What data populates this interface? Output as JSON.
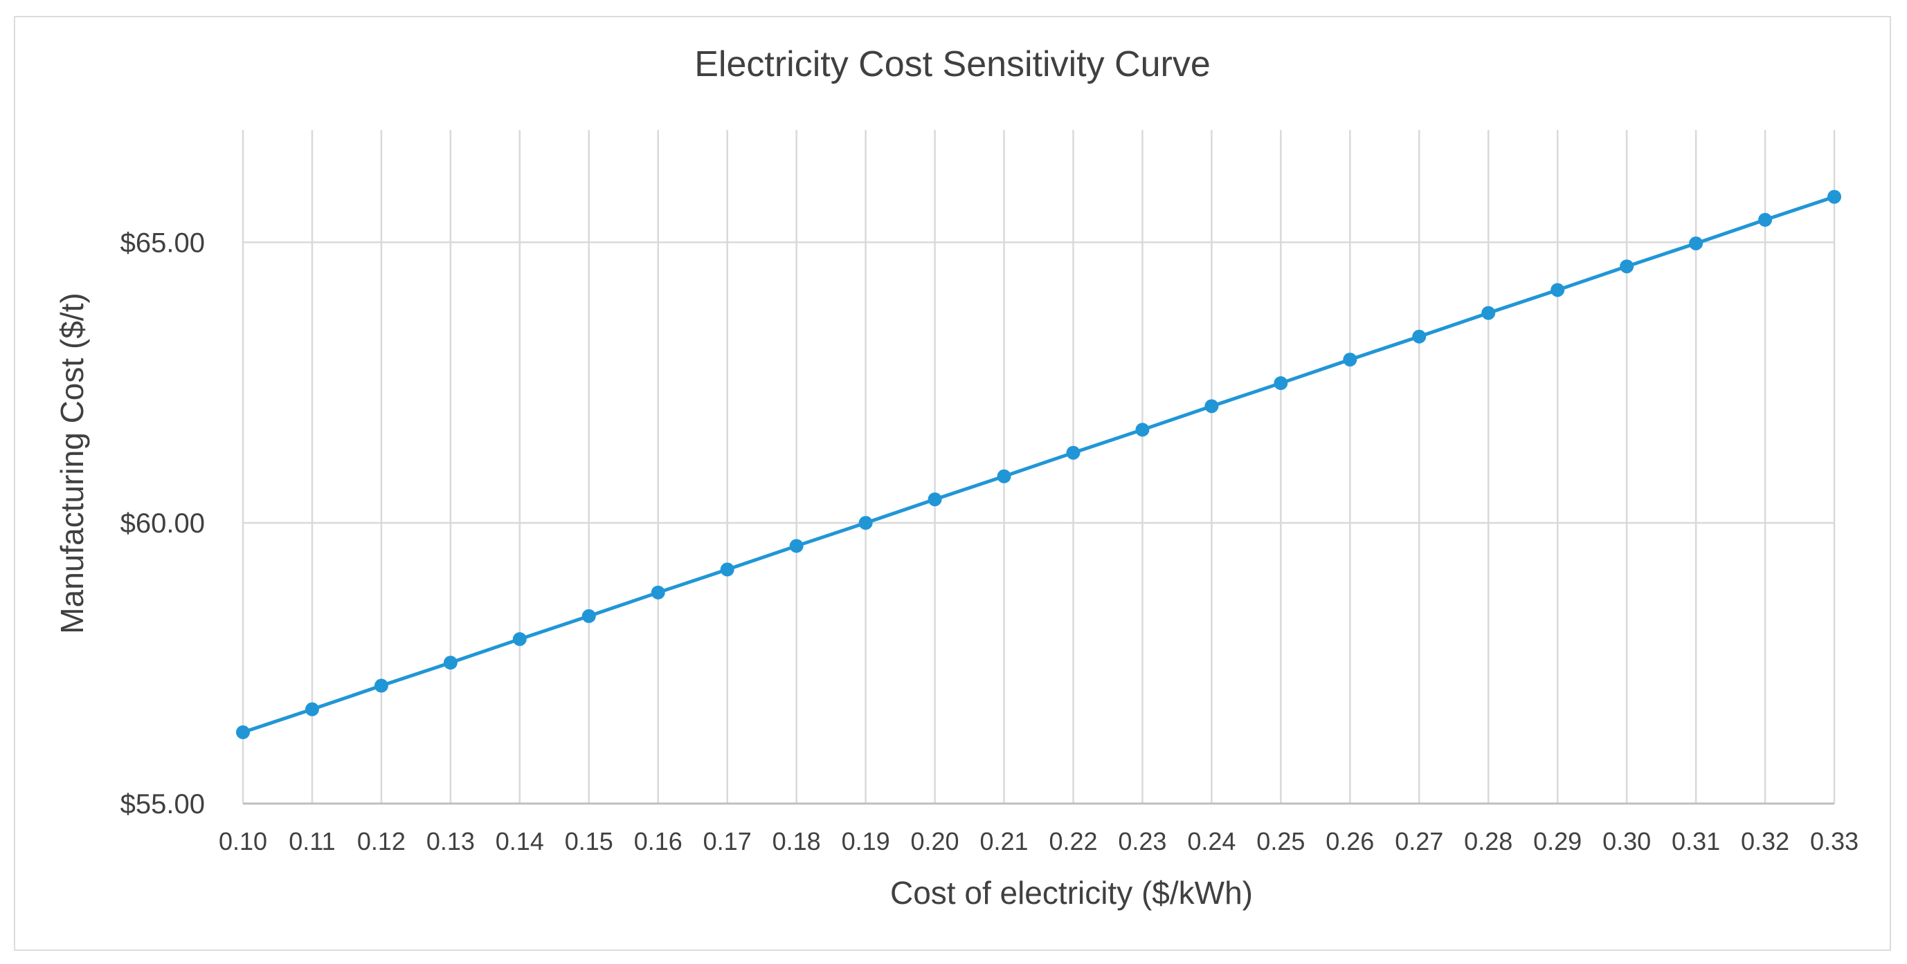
{
  "chart_data": {
    "type": "line",
    "title": "Electricity Cost Sensitivity Curve",
    "xlabel": "Cost of electricity ($/kWh)",
    "ylabel": "Manufacturing Cost ($/t)",
    "categories": [
      "0.10",
      "0.11",
      "0.12",
      "0.13",
      "0.14",
      "0.15",
      "0.16",
      "0.17",
      "0.18",
      "0.19",
      "0.20",
      "0.21",
      "0.22",
      "0.23",
      "0.24",
      "0.25",
      "0.26",
      "0.27",
      "0.28",
      "0.29",
      "0.30",
      "0.31",
      "0.32",
      "0.33"
    ],
    "series": [
      {
        "name": "Manufacturing Cost",
        "color": "#2196d6",
        "values": [
          56.27,
          56.68,
          57.1,
          57.51,
          57.93,
          58.34,
          58.76,
          59.17,
          59.59,
          60.0,
          60.42,
          60.83,
          61.25,
          61.66,
          62.08,
          62.49,
          62.91,
          63.32,
          63.74,
          64.15,
          64.57,
          64.98,
          65.4,
          65.81
        ]
      }
    ],
    "ylim": [
      55,
      67
    ],
    "yticks": [
      55,
      60,
      65
    ],
    "ytick_labels": [
      "$55.00",
      "$60.00",
      "$65.00"
    ],
    "grid": true,
    "gridline_color": "#d9d9d9",
    "legend": "none"
  }
}
